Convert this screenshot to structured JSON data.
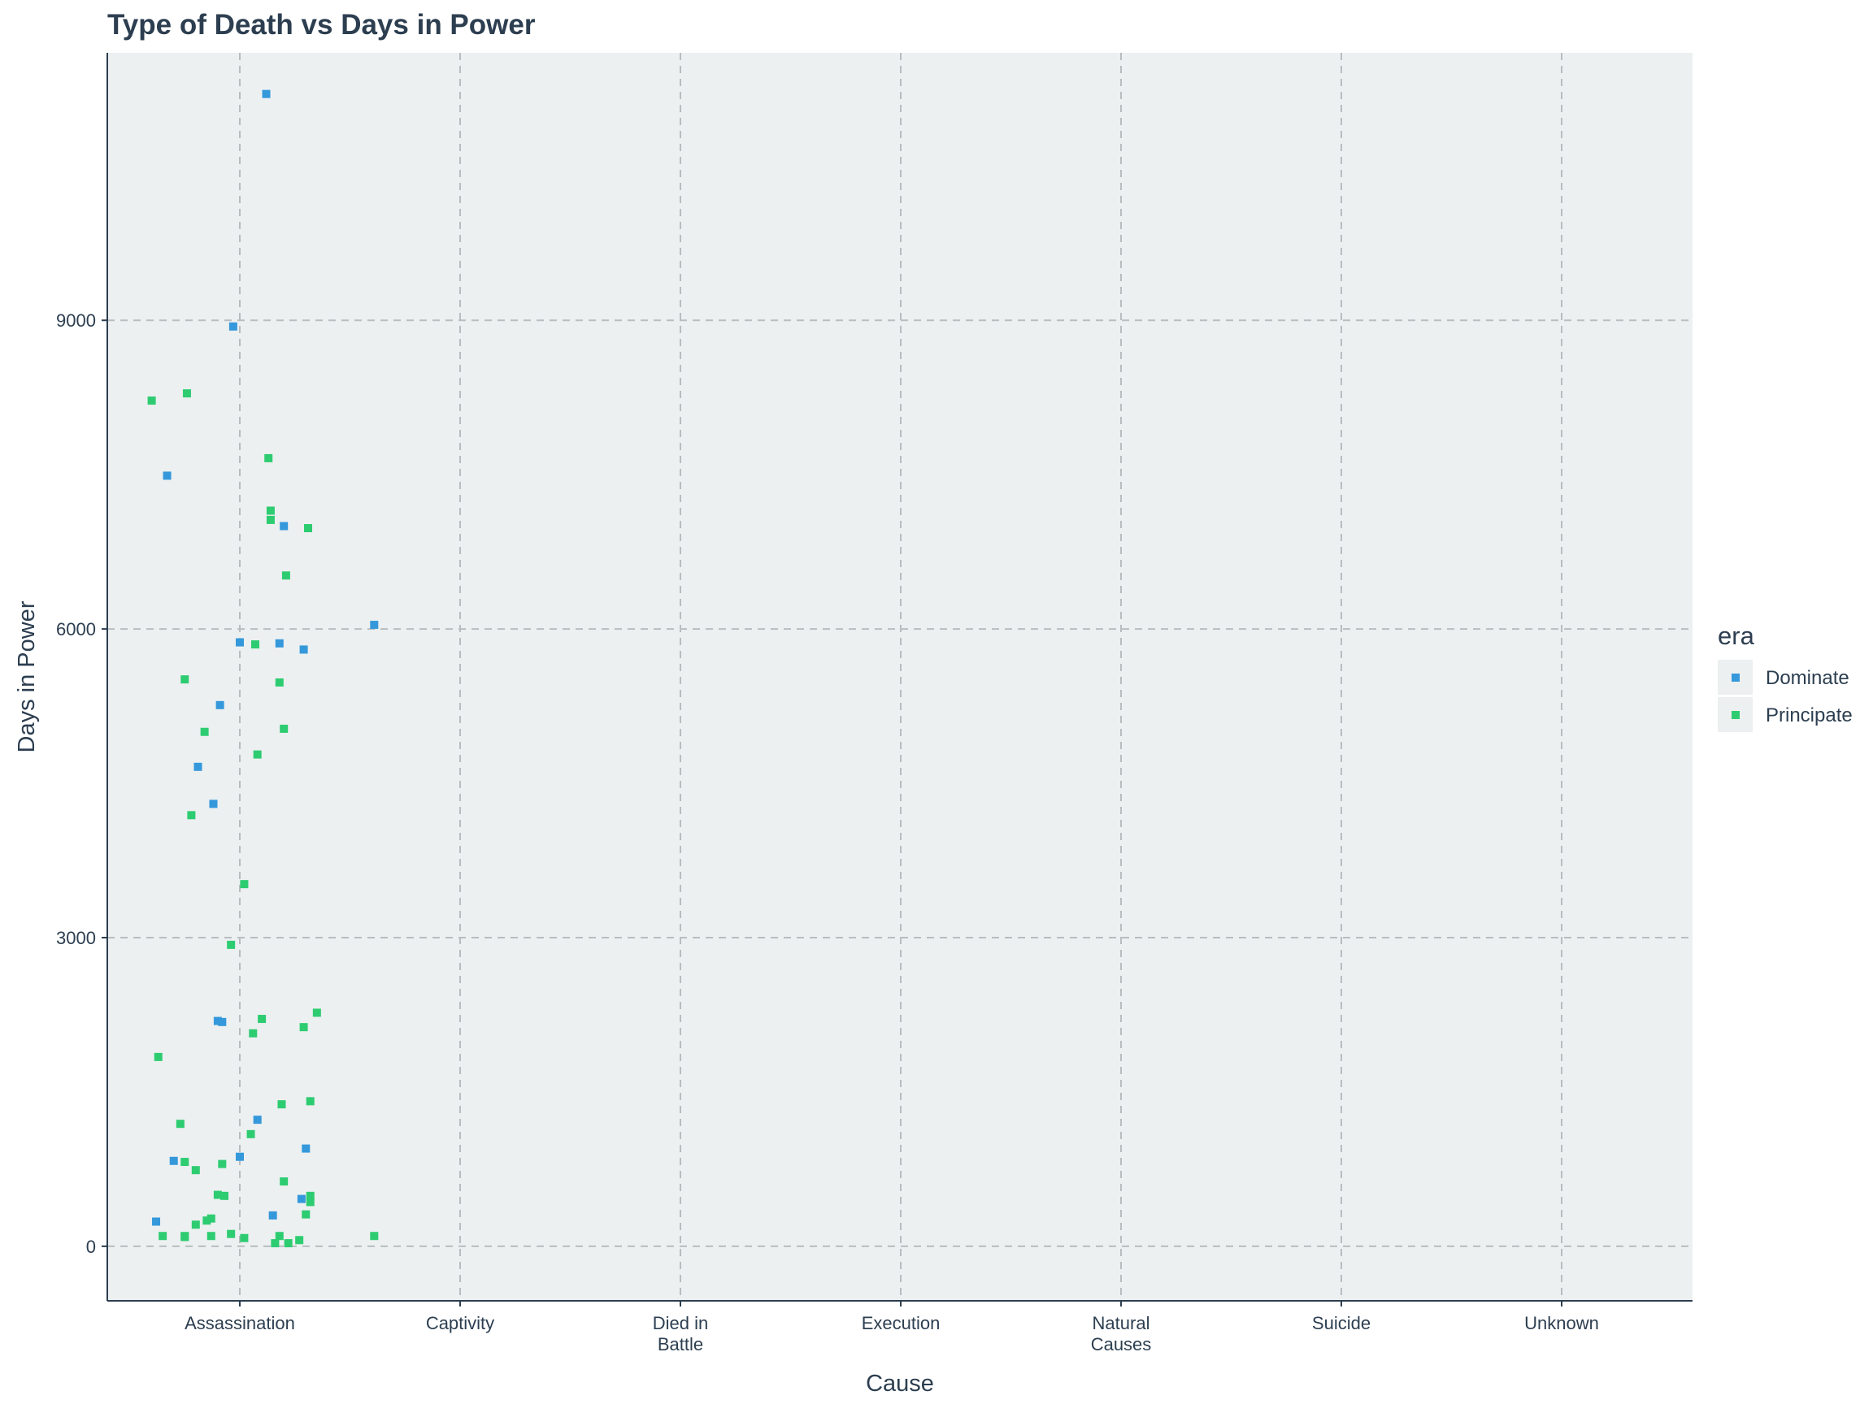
{
  "chart_data": {
    "type": "scatter",
    "title": "Type of Death vs Days in Power",
    "xlabel": "Cause",
    "ylabel": "Days in Power",
    "categories": [
      "Assassination",
      "Captivity",
      "Died in Battle",
      "Execution",
      "Natural Causes",
      "Suicide",
      "Unknown"
    ],
    "category_tick_labels": [
      [
        "Assassination"
      ],
      [
        "Captivity"
      ],
      [
        "Died in",
        "Battle"
      ],
      [
        "Execution"
      ],
      [
        "Natural",
        "Causes"
      ],
      [
        "Suicide"
      ],
      [
        "Unknown"
      ]
    ],
    "ylim": [
      -530,
      11600
    ],
    "yticks": [
      0,
      3000,
      6000,
      9000
    ],
    "grid": true,
    "jittered": true,
    "legend": {
      "title": "era",
      "placement": "right"
    },
    "series": [
      {
        "name": "Dominate",
        "color": "#3498db",
        "points": [
          {
            "x": 0.0,
            "y": 5870
          },
          {
            "x": -0.19,
            "y": 4660
          },
          {
            "x": 0.0,
            "y": 870
          },
          {
            "x": -0.09,
            "y": 5260
          },
          {
            "x": 0.08,
            "y": 1230
          },
          {
            "x": 0.29,
            "y": 5800
          },
          {
            "x": -0.1,
            "y": 2190
          },
          {
            "x": -0.3,
            "y": 830
          },
          {
            "x": 0.3,
            "y": 950
          },
          {
            "x": 0.12,
            "y": 11200
          },
          {
            "x": -0.03,
            "y": 8940
          },
          {
            "x": -0.33,
            "y": 7490
          },
          {
            "x": 0.18,
            "y": 5860
          },
          {
            "x": 0.61,
            "y": 6040
          },
          {
            "x": -0.12,
            "y": 4300
          },
          {
            "x": -0.08,
            "y": 2180
          },
          {
            "x": 0.28,
            "y": 460
          },
          {
            "x": -0.38,
            "y": 240
          },
          {
            "x": 0.2,
            "y": 7000
          },
          {
            "x": 0.15,
            "y": 300
          }
        ]
      },
      {
        "name": "Principate",
        "color": "#2ecc71",
        "points": [
          {
            "x": -0.4,
            "y": 8220
          },
          {
            "x": 0.14,
            "y": 7060
          },
          {
            "x": 0.07,
            "y": 5850
          },
          {
            "x": -0.25,
            "y": 5510
          },
          {
            "x": 0.18,
            "y": 5480
          },
          {
            "x": 0.2,
            "y": 5030
          },
          {
            "x": 0.08,
            "y": 4780
          },
          {
            "x": -0.22,
            "y": 4190
          },
          {
            "x": 0.1,
            "y": 2210
          },
          {
            "x": -0.37,
            "y": 1840
          },
          {
            "x": 0.32,
            "y": 1410
          },
          {
            "x": 0.19,
            "y": 1380
          },
          {
            "x": -0.27,
            "y": 1190
          },
          {
            "x": 0.05,
            "y": 1090
          },
          {
            "x": -0.08,
            "y": 800
          },
          {
            "x": -0.15,
            "y": 250
          },
          {
            "x": -0.2,
            "y": 210
          },
          {
            "x": -0.35,
            "y": 100
          },
          {
            "x": -0.25,
            "y": 90
          },
          {
            "x": 0.02,
            "y": 80
          },
          {
            "x": 0.18,
            "y": 100
          },
          {
            "x": 0.27,
            "y": 60
          },
          {
            "x": 0.35,
            "y": 2270
          },
          {
            "x": -0.2,
            "y": 740
          },
          {
            "x": 0.2,
            "y": 630
          },
          {
            "x": 0.29,
            "y": 2130
          },
          {
            "x": 0.06,
            "y": 2070
          },
          {
            "x": 0.32,
            "y": 430
          },
          {
            "x": -0.25,
            "y": 100
          },
          {
            "x": 0.16,
            "y": 30
          },
          {
            "x": -0.24,
            "y": 8290
          },
          {
            "x": 0.13,
            "y": 7660
          },
          {
            "x": 0.14,
            "y": 7150
          },
          {
            "x": 0.31,
            "y": 6980
          },
          {
            "x": 0.21,
            "y": 6520
          },
          {
            "x": 0.02,
            "y": 3520
          },
          {
            "x": -0.04,
            "y": 2930
          },
          {
            "x": -0.25,
            "y": 820
          },
          {
            "x": -0.1,
            "y": 500
          },
          {
            "x": -0.07,
            "y": 490
          },
          {
            "x": -0.13,
            "y": 270
          },
          {
            "x": 0.3,
            "y": 310
          },
          {
            "x": -0.04,
            "y": 120
          },
          {
            "x": 0.61,
            "y": 100
          },
          {
            "x": -0.16,
            "y": 5000
          },
          {
            "x": 0.22,
            "y": 30
          },
          {
            "x": -0.13,
            "y": 100
          },
          {
            "x": 0.32,
            "y": 490
          }
        ]
      }
    ]
  }
}
